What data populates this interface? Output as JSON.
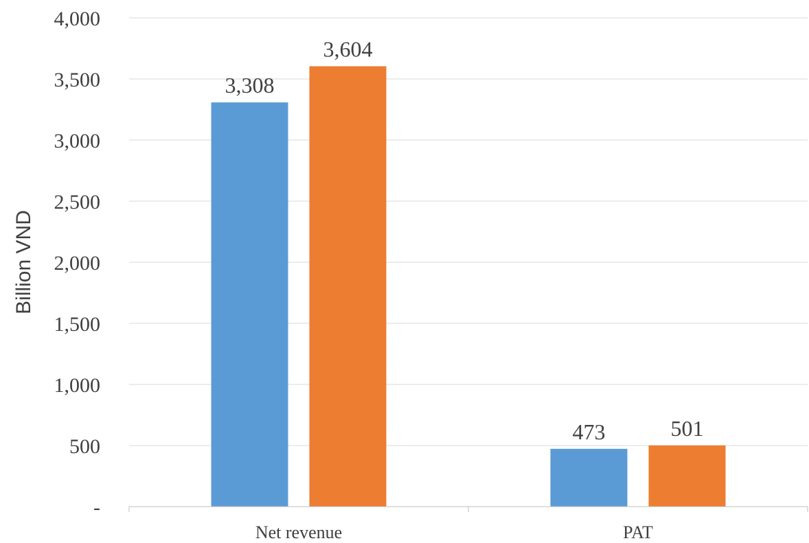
{
  "chart_data": {
    "type": "bar",
    "categories": [
      "Net revenue",
      "PAT"
    ],
    "series": [
      {
        "values": [
          3308,
          473
        ],
        "color": "#5b9bd5"
      },
      {
        "values": [
          3604,
          501
        ],
        "color": "#ed7d31"
      }
    ],
    "data_labels": [
      [
        "3,308",
        "473"
      ],
      [
        "3,604",
        "501"
      ]
    ],
    "ylabel": "Billion VND",
    "ylim": [
      0,
      4000
    ],
    "y_ticks": [
      0,
      500,
      1000,
      1500,
      2000,
      2500,
      3000,
      3500,
      4000
    ],
    "y_tick_labels": [
      "-",
      "500",
      "1,000",
      "1,500",
      "2,000",
      "2,500",
      "3,000",
      "3,500",
      "4,000"
    ],
    "grid": true,
    "legend": "none"
  }
}
